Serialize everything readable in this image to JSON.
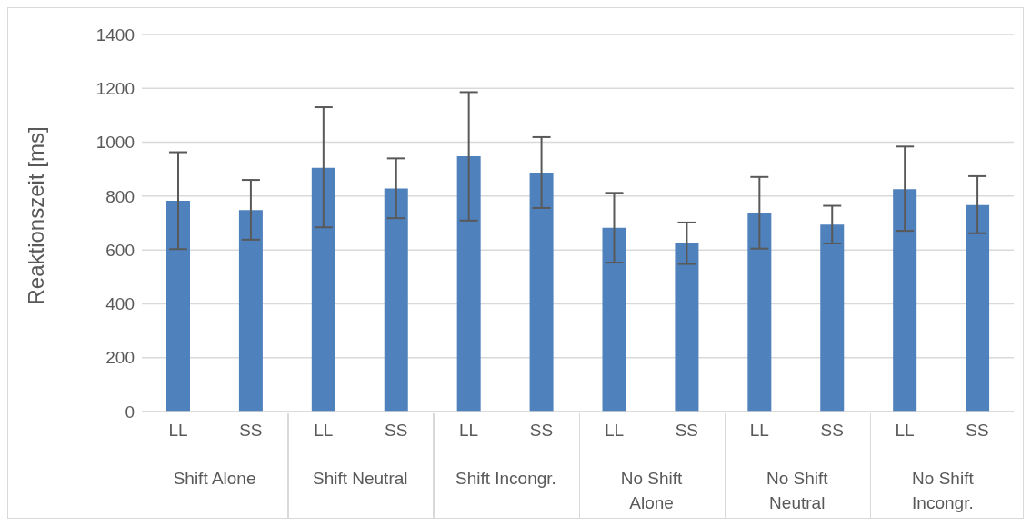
{
  "chart_data": {
    "type": "bar",
    "ylabel": "Reaktionszeit [ms]",
    "categories": [
      "LL",
      "SS",
      "LL",
      "SS",
      "LL",
      "SS",
      "LL",
      "SS",
      "LL",
      "SS",
      "LL",
      "SS"
    ],
    "values": [
      783,
      748,
      905,
      828,
      948,
      887,
      682,
      624,
      737,
      694,
      826,
      767
    ],
    "errors": [
      [
        603,
        963
      ],
      [
        638,
        860
      ],
      [
        684,
        1130
      ],
      [
        718,
        940
      ],
      [
        709,
        1186
      ],
      [
        756,
        1019
      ],
      [
        553,
        812
      ],
      [
        548,
        702
      ],
      [
        605,
        871
      ],
      [
        624,
        764
      ],
      [
        671,
        984
      ],
      [
        662,
        874
      ]
    ],
    "color": "#4f81bd",
    "ylim": [
      0,
      1400
    ],
    "yticks": [
      0,
      200,
      400,
      600,
      800,
      1000,
      1200,
      1400
    ],
    "grid": "y",
    "annotations": [
      "Shift Alone",
      "Shift Neutral",
      "Shift Incongr.",
      "No Shift Alone",
      "No Shift Neutral",
      "No Shift Incongr."
    ]
  }
}
